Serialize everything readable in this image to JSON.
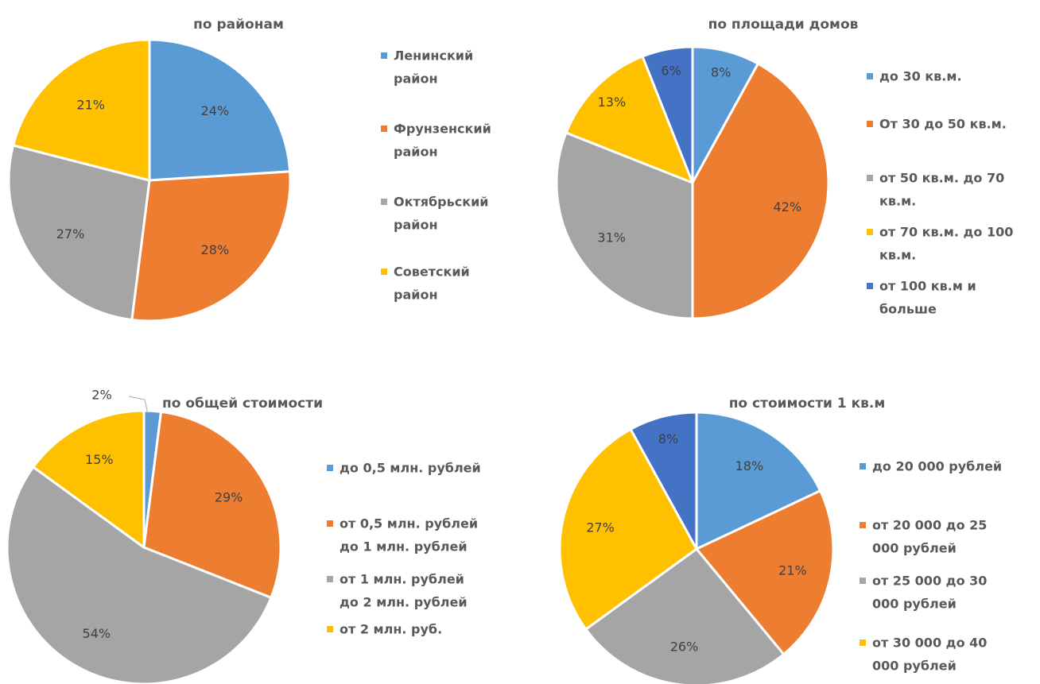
{
  "colors": {
    "blue": "#5B9BD5",
    "orange": "#ED7D31",
    "gray": "#A5A5A5",
    "gold": "#FFC000",
    "darkblue": "#4472C4"
  },
  "chart_data": [
    {
      "type": "pie",
      "title": "по районам",
      "legend_position": "right",
      "slices": [
        {
          "name": "Ленинский район",
          "legend_lines": [
            "Ленинский",
            "район"
          ],
          "value": 24,
          "label": "24%",
          "color": "#5B9BD5"
        },
        {
          "name": "Фрунзенский район",
          "legend_lines": [
            "Фрунзенский",
            "район"
          ],
          "value": 28,
          "label": "28%",
          "color": "#ED7D31"
        },
        {
          "name": "Октябрьский район",
          "legend_lines": [
            "Октябрьский",
            "район"
          ],
          "value": 27,
          "label": "27%",
          "color": "#A5A5A5"
        },
        {
          "name": "Советский район",
          "legend_lines": [
            "Советский",
            "район"
          ],
          "value": 21,
          "label": "21%",
          "color": "#FFC000"
        }
      ]
    },
    {
      "type": "pie",
      "title": "по площади домов",
      "legend_position": "right",
      "slices": [
        {
          "name": "до 30 кв.м.",
          "legend_lines": [
            "до 30 кв.м."
          ],
          "value": 8,
          "label": "8%",
          "color": "#5B9BD5"
        },
        {
          "name": "От 30 до 50 кв.м.",
          "legend_lines": [
            "От 30 до 50 кв.м."
          ],
          "value": 42,
          "label": "42%",
          "color": "#ED7D31"
        },
        {
          "name": "от 50 кв.м. до 70 кв.м.",
          "legend_lines": [
            "от 50 кв.м. до 70",
            "кв.м."
          ],
          "value": 31,
          "label": "31%",
          "color": "#A5A5A5"
        },
        {
          "name": "от 70 кв.м. до 100 кв.м.",
          "legend_lines": [
            "от 70 кв.м. до 100",
            "кв.м."
          ],
          "value": 13,
          "label": "13%",
          "color": "#FFC000"
        },
        {
          "name": "от 100 кв.м и больше",
          "legend_lines": [
            "от 100 кв.м и",
            "больше"
          ],
          "value": 6,
          "label": "6%",
          "color": "#4472C4"
        }
      ]
    },
    {
      "type": "pie",
      "title": "по общей стоимости",
      "legend_position": "right",
      "slices": [
        {
          "name": "до 0,5 млн. рублей",
          "legend_lines": [
            "до 0,5 млн. рублей"
          ],
          "value": 2,
          "label": "2%",
          "color": "#5B9BD5"
        },
        {
          "name": "от 0,5 млн. рублей до 1 млн. рублей",
          "legend_lines": [
            "от 0,5 млн. рублей",
            "до 1 млн. рублей"
          ],
          "value": 29,
          "label": "29%",
          "color": "#ED7D31"
        },
        {
          "name": "от 1 млн. рублей до 2 млн. рублей",
          "legend_lines": [
            "от 1 млн. рублей",
            "до 2 млн. рублей"
          ],
          "value": 54,
          "label": "54%",
          "color": "#A5A5A5"
        },
        {
          "name": "от 2 млн. руб.",
          "legend_lines": [
            "от 2 млн. руб."
          ],
          "value": 15,
          "label": "15%",
          "color": "#FFC000"
        }
      ]
    },
    {
      "type": "pie",
      "title": "по стоимости 1 кв.м",
      "legend_position": "right",
      "slices": [
        {
          "name": "до 20 000 рублей",
          "legend_lines": [
            "до 20 000 рублей"
          ],
          "value": 18,
          "label": "18%",
          "color": "#5B9BD5"
        },
        {
          "name": "от 20 000 до 25 000 рублей",
          "legend_lines": [
            "от 20 000 до 25",
            "000 рублей"
          ],
          "value": 21,
          "label": "21%",
          "color": "#ED7D31"
        },
        {
          "name": "от 25 000 до 30 000 рублей",
          "legend_lines": [
            "от 25 000 до 30",
            "000 рублей"
          ],
          "value": 26,
          "label": "26%",
          "color": "#A5A5A5"
        },
        {
          "name": "от 30 000 до 40 000 рублей",
          "legend_lines": [
            "от 30 000 до 40",
            "000 рублей"
          ],
          "value": 27,
          "label": "27%",
          "color": "#FFC000"
        },
        {
          "name": "",
          "legend_lines": [],
          "value": 8,
          "label": "8%",
          "color": "#4472C4"
        }
      ]
    }
  ]
}
